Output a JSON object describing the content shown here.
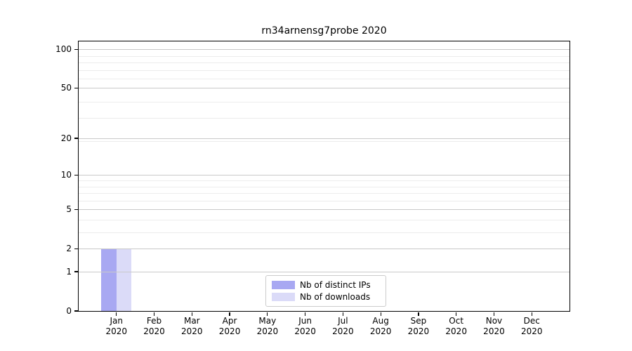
{
  "chart_data": {
    "type": "bar",
    "title": "rn34arnensg7probe 2020",
    "x_categories": [
      {
        "month": "Jan",
        "year": "2020"
      },
      {
        "month": "Feb",
        "year": "2020"
      },
      {
        "month": "Mar",
        "year": "2020"
      },
      {
        "month": "Apr",
        "year": "2020"
      },
      {
        "month": "May",
        "year": "2020"
      },
      {
        "month": "Jun",
        "year": "2020"
      },
      {
        "month": "Jul",
        "year": "2020"
      },
      {
        "month": "Aug",
        "year": "2020"
      },
      {
        "month": "Sep",
        "year": "2020"
      },
      {
        "month": "Oct",
        "year": "2020"
      },
      {
        "month": "Nov",
        "year": "2020"
      },
      {
        "month": "Dec",
        "year": "2020"
      }
    ],
    "series": [
      {
        "name": "Nb of distinct IPs",
        "color": "#a8a8f2",
        "values": [
          2,
          0,
          0,
          0,
          0,
          0,
          0,
          0,
          0,
          0,
          0,
          0
        ]
      },
      {
        "name": "Nb of downloads",
        "color": "#dbdbf8",
        "values": [
          2,
          0,
          0,
          0,
          0,
          0,
          0,
          0,
          0,
          0,
          0,
          0
        ]
      }
    ],
    "yscale": "log1p",
    "ylim": [
      0,
      115
    ],
    "y_major_ticks": [
      0,
      1,
      2,
      5,
      10,
      20,
      50,
      100
    ],
    "y_minor_ticks": [
      3,
      4,
      6,
      7,
      8,
      9,
      19,
      29,
      39,
      59,
      69,
      79,
      89
    ],
    "grid": "both",
    "legend_position": "lower center"
  },
  "colors": {
    "grid_major": "#c9c9c9",
    "grid_minor": "#ececec",
    "spine": "#000000",
    "background": "#ffffff"
  }
}
